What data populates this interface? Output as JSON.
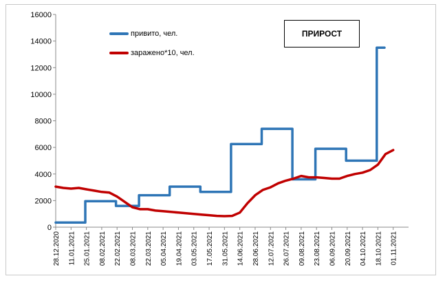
{
  "chart_data": {
    "type": "line",
    "title": "ПРИРОСТ",
    "ylim": [
      0,
      16000
    ],
    "yticks": [
      0,
      2000,
      4000,
      6000,
      8000,
      10000,
      12000,
      14000,
      16000
    ],
    "x_tick_labels": [
      "28.12.2020",
      "11.01.2021",
      "25.01.2021",
      "08.02.2021",
      "22.02.2021",
      "08.03.2021",
      "22.03.2021",
      "05.04.2021",
      "19.04.2021",
      "03.05.2021",
      "17.05.2021",
      "31.05.2021",
      "14.06.2021",
      "28.06.2021",
      "12.07.2021",
      "26.07.2021",
      "09.08.2021",
      "23.08.2021",
      "06.09.2021",
      "20.09.2021",
      "04.10.2021",
      "18.10.2021",
      "01.11.2021"
    ],
    "x_range": [
      "2020-12-28",
      "2021-11-15"
    ],
    "grid": false,
    "legend_position": "top-left",
    "series": [
      {
        "name": "привито, чел.",
        "color": "#2e75b6",
        "points": [
          [
            "2020-12-28",
            350
          ],
          [
            "2021-01-24",
            350
          ],
          [
            "2021-01-24",
            1950
          ],
          [
            "2021-02-21",
            1950
          ],
          [
            "2021-02-21",
            1600
          ],
          [
            "2021-03-14",
            1600
          ],
          [
            "2021-03-14",
            2400
          ],
          [
            "2021-04-11",
            2400
          ],
          [
            "2021-04-11",
            3050
          ],
          [
            "2021-05-09",
            3050
          ],
          [
            "2021-05-09",
            2650
          ],
          [
            "2021-06-06",
            2650
          ],
          [
            "2021-06-06",
            6250
          ],
          [
            "2021-07-04",
            6250
          ],
          [
            "2021-07-04",
            7400
          ],
          [
            "2021-08-01",
            7400
          ],
          [
            "2021-08-01",
            3600
          ],
          [
            "2021-08-22",
            3600
          ],
          [
            "2021-08-22",
            5900
          ],
          [
            "2021-09-19",
            5900
          ],
          [
            "2021-09-19",
            5000
          ],
          [
            "2021-10-17",
            5000
          ],
          [
            "2021-10-17",
            13500
          ],
          [
            "2021-10-24",
            13500
          ]
        ]
      },
      {
        "name": "заражено*10, чел.",
        "color": "#c00000",
        "points": [
          [
            "2020-12-28",
            3050
          ],
          [
            "2021-01-04",
            2950
          ],
          [
            "2021-01-11",
            2900
          ],
          [
            "2021-01-18",
            2950
          ],
          [
            "2021-01-25",
            2850
          ],
          [
            "2021-02-01",
            2750
          ],
          [
            "2021-02-08",
            2650
          ],
          [
            "2021-02-15",
            2600
          ],
          [
            "2021-02-22",
            2300
          ],
          [
            "2021-03-01",
            1900
          ],
          [
            "2021-03-08",
            1500
          ],
          [
            "2021-03-15",
            1350
          ],
          [
            "2021-03-22",
            1350
          ],
          [
            "2021-03-29",
            1250
          ],
          [
            "2021-04-05",
            1200
          ],
          [
            "2021-04-12",
            1150
          ],
          [
            "2021-04-19",
            1100
          ],
          [
            "2021-04-26",
            1050
          ],
          [
            "2021-05-03",
            1000
          ],
          [
            "2021-05-10",
            950
          ],
          [
            "2021-05-17",
            900
          ],
          [
            "2021-05-24",
            850
          ],
          [
            "2021-05-31",
            830
          ],
          [
            "2021-06-07",
            850
          ],
          [
            "2021-06-14",
            1100
          ],
          [
            "2021-06-21",
            1800
          ],
          [
            "2021-06-28",
            2400
          ],
          [
            "2021-07-05",
            2800
          ],
          [
            "2021-07-12",
            3000
          ],
          [
            "2021-07-19",
            3300
          ],
          [
            "2021-07-26",
            3500
          ],
          [
            "2021-08-02",
            3650
          ],
          [
            "2021-08-09",
            3850
          ],
          [
            "2021-08-16",
            3750
          ],
          [
            "2021-08-23",
            3750
          ],
          [
            "2021-08-30",
            3700
          ],
          [
            "2021-09-06",
            3650
          ],
          [
            "2021-09-13",
            3650
          ],
          [
            "2021-09-20",
            3850
          ],
          [
            "2021-09-27",
            4000
          ],
          [
            "2021-10-04",
            4100
          ],
          [
            "2021-10-11",
            4300
          ],
          [
            "2021-10-18",
            4700
          ],
          [
            "2021-10-25",
            5500
          ],
          [
            "2021-11-01",
            5800
          ]
        ]
      }
    ]
  }
}
